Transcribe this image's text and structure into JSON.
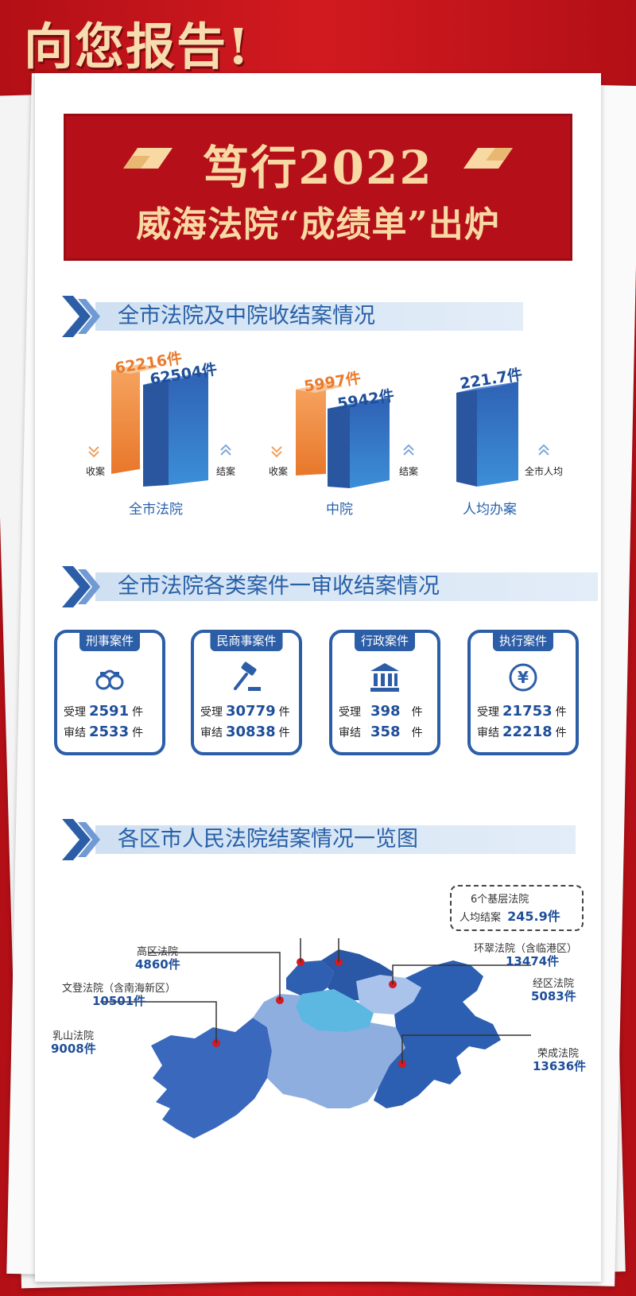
{
  "header": {
    "headline": "向您报告!"
  },
  "title": {
    "line1": "笃行2022",
    "line2": "威海法院“成绩单”出炉"
  },
  "sections": [
    {
      "title": "全市法院及中院收结案情况"
    },
    {
      "title": "全市法院各类案件一审收结案情况"
    },
    {
      "title": "各区市人民法院结案情况一览图"
    }
  ],
  "overview": {
    "groups": [
      {
        "name": "全市法院",
        "received": "62216件",
        "received_label": "收案",
        "closed": "62504件",
        "closed_label": "结案"
      },
      {
        "name": "中院",
        "received": "5997件",
        "received_label": "收案",
        "closed": "5942件",
        "closed_label": "结案"
      },
      {
        "name": "人均办案",
        "value": "221.7件",
        "value_label": "全市人均"
      }
    ]
  },
  "cases": [
    {
      "type": "刑事案件",
      "icon": "handcuffs-icon",
      "accept_label": "受理",
      "accept": "2591",
      "close_label": "审结",
      "close": "2533",
      "unit": "件"
    },
    {
      "type": "民商事案件",
      "icon": "gavel-icon",
      "accept_label": "受理",
      "accept": "30779",
      "close_label": "审结",
      "close": "30838",
      "unit": "件"
    },
    {
      "type": "行政案件",
      "icon": "courthouse-icon",
      "accept_label": "受理",
      "accept": "398",
      "close_label": "审结",
      "close": "358",
      "unit": "件"
    },
    {
      "type": "执行案件",
      "icon": "yen-coin-icon",
      "accept_label": "受理",
      "accept": "21753",
      "close_label": "审结",
      "close": "22218",
      "unit": "件"
    }
  ],
  "map": {
    "summary": {
      "line1": "6个基层法院",
      "line2": "人均结案",
      "value": "245.9件"
    },
    "courts": [
      {
        "name": "高区法院",
        "value": "4860件"
      },
      {
        "name": "文登法院（含南海新区）",
        "value": "10501件"
      },
      {
        "name": "乳山法院",
        "value": "9008件"
      },
      {
        "name": "环翠法院（含临港区）",
        "value": "13474件"
      },
      {
        "name": "经区法院",
        "value": "5083件"
      },
      {
        "name": "荣成法院",
        "value": "13636件"
      }
    ]
  },
  "colors": {
    "red": "#c8141b",
    "gold": "#f8d9a4",
    "blue": "#2c5ea8",
    "orange": "#ea7b2d"
  }
}
